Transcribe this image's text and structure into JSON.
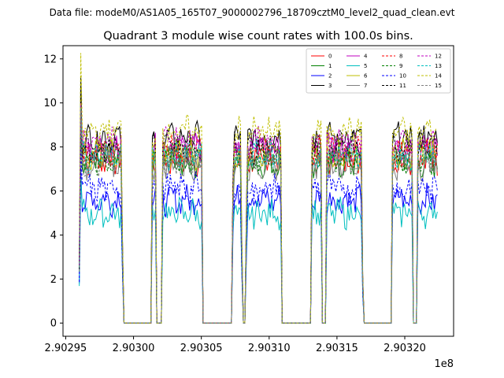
{
  "suptitle": "Data file: modeM0/AS1A05_165T07_9000002796_18709cztM0_level2_quad_clean.evt",
  "chart_data": {
    "type": "line",
    "title": "Quadrant 3 module wise count rates with 100.0s bins.",
    "xlabel": "",
    "ylabel": "",
    "x_offset_label": "1e8",
    "xlim": [
      2.902948,
      2.903236
    ],
    "ylim": [
      -0.6,
      12.6
    ],
    "x_ticks": [
      2.90295,
      2.903,
      2.90305,
      2.9031,
      2.90315,
      2.9032
    ],
    "x_tick_labels": [
      "2.90295",
      "2.90300",
      "2.90305",
      "2.90310",
      "2.90315",
      "2.90320"
    ],
    "y_ticks": [
      0,
      2,
      4,
      6,
      8,
      10,
      12
    ],
    "y_tick_labels": [
      "0",
      "2",
      "4",
      "6",
      "8",
      "10",
      "12"
    ],
    "grid": false,
    "legend_location": "upper-right",
    "legend_columns": 4,
    "time_start": 2.90296,
    "time_end": 2.903225,
    "on_intervals": [
      [
        2.90296,
        2.902992
      ],
      [
        2.903013,
        2.903017
      ],
      [
        2.903021,
        2.903051
      ],
      [
        2.903073,
        2.90308
      ],
      [
        2.903083,
        2.903109
      ],
      [
        2.903131,
        2.903139
      ],
      [
        2.903142,
        2.903169
      ],
      [
        2.90319,
        2.903206
      ],
      [
        2.903209,
        2.903225
      ]
    ],
    "series": [
      {
        "name": "0",
        "color": "#ff0000",
        "dashed": false,
        "level": 7.4
      },
      {
        "name": "1",
        "color": "#008000",
        "dashed": false,
        "level": 7.3
      },
      {
        "name": "2",
        "color": "#0000ff",
        "dashed": false,
        "level": 5.6
      },
      {
        "name": "3",
        "color": "#000000",
        "dashed": false,
        "level": 8.4
      },
      {
        "name": "4",
        "color": "#bf00bf",
        "dashed": false,
        "level": 7.9
      },
      {
        "name": "5",
        "color": "#00bfbf",
        "dashed": false,
        "level": 5.0
      },
      {
        "name": "6",
        "color": "#bfbf00",
        "dashed": false,
        "level": 7.7
      },
      {
        "name": "7",
        "color": "#808080",
        "dashed": false,
        "level": 7.2
      },
      {
        "name": "8",
        "color": "#ff0000",
        "dashed": true,
        "level": 7.8
      },
      {
        "name": "9",
        "color": "#008000",
        "dashed": true,
        "level": 7.5
      },
      {
        "name": "10",
        "color": "#0000ff",
        "dashed": true,
        "level": 6.1
      },
      {
        "name": "11",
        "color": "#000000",
        "dashed": true,
        "level": 8.0
      },
      {
        "name": "12",
        "color": "#bf00bf",
        "dashed": true,
        "level": 8.2
      },
      {
        "name": "13",
        "color": "#00bfbf",
        "dashed": true,
        "level": 7.6
      },
      {
        "name": "14",
        "color": "#bfbf00",
        "dashed": true,
        "level": 8.7
      },
      {
        "name": "15",
        "color": "#808080",
        "dashed": true,
        "level": 7.4
      }
    ]
  }
}
